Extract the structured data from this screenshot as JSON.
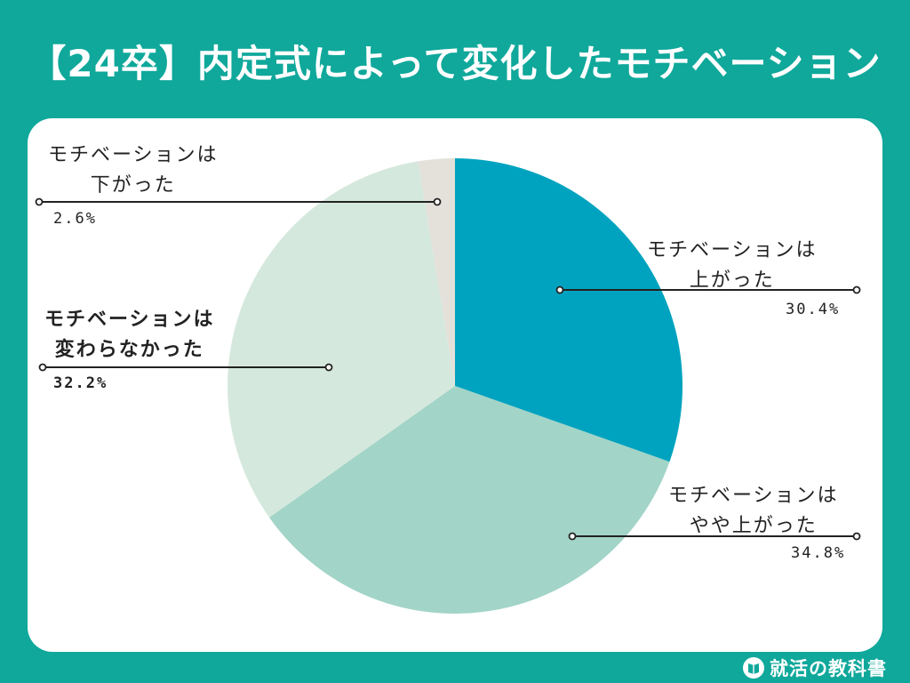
{
  "chart_data": {
    "type": "pie",
    "title": "【24卒】内定式によって変化したモチベーション",
    "slices": [
      {
        "label_lines": [
          "モチベーションは",
          "上がった"
        ],
        "value": 30.4,
        "value_text": "30.4%",
        "color": "#00a3bf",
        "bold": false
      },
      {
        "label_lines": [
          "モチベーションは",
          "やや上がった"
        ],
        "value": 34.8,
        "value_text": "34.8%",
        "color": "#a2d4c7",
        "bold": false
      },
      {
        "label_lines": [
          "モチベーションは",
          "変わらなかった"
        ],
        "value": 32.2,
        "value_text": "32.2%",
        "color": "#d5e8dd",
        "bold": true
      },
      {
        "label_lines": [
          "モチベーションは",
          "下がった"
        ],
        "value": 2.6,
        "value_text": "2.6%",
        "color": "#e3e1da",
        "bold": false
      }
    ]
  },
  "brand": {
    "name": "就活の教科書",
    "icon": "book-logo-icon"
  }
}
